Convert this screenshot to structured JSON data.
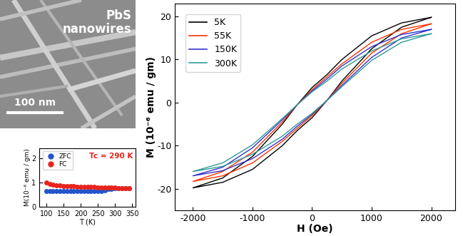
{
  "micrograph": {
    "label": "PbS\nnanowires",
    "scale_bar": "100 nm"
  },
  "chart_data": [
    {
      "type": "scatter",
      "xlabel": "T (K)",
      "ylabel": "M(10⁻⁶ emu / gm)",
      "annotation": "Tc = 290 K",
      "xlim": [
        80,
        360
      ],
      "ylim": [
        0,
        2.4
      ],
      "xticks": [
        100,
        150,
        200,
        250,
        300,
        350
      ],
      "yticks": [
        0,
        1,
        2
      ],
      "legend": "upper left",
      "marker": "o",
      "x": [
        100,
        110,
        120,
        130,
        140,
        150,
        160,
        170,
        180,
        190,
        200,
        210,
        220,
        230,
        240,
        250,
        260,
        270,
        280,
        290,
        300,
        310,
        320,
        330,
        340
      ],
      "series": [
        {
          "name": "ZFC",
          "color": "#2255cc",
          "values": [
            0.65,
            0.65,
            0.65,
            0.65,
            0.65,
            0.65,
            0.65,
            0.65,
            0.65,
            0.65,
            0.65,
            0.65,
            0.65,
            0.65,
            0.65,
            0.65,
            0.65,
            0.68,
            0.72,
            0.74,
            0.75,
            0.75,
            0.75,
            0.75,
            0.75
          ]
        },
        {
          "name": "FC",
          "color": "#e8241c",
          "values": [
            1.0,
            0.93,
            0.9,
            0.88,
            0.87,
            0.86,
            0.85,
            0.84,
            0.84,
            0.83,
            0.83,
            0.82,
            0.82,
            0.81,
            0.81,
            0.8,
            0.8,
            0.79,
            0.79,
            0.78,
            0.78,
            0.77,
            0.77,
            0.76,
            0.76
          ]
        }
      ]
    },
    {
      "type": "line",
      "xlabel": "H (Oe)",
      "ylabel": "M (10⁻⁶ emu / gm)",
      "xlim": [
        -2300,
        2400
      ],
      "ylim": [
        -25,
        23
      ],
      "xticks": [
        -2000,
        -1000,
        0,
        1000,
        2000
      ],
      "yticks": [
        -20,
        -10,
        0,
        10,
        20
      ],
      "legend": "upper left",
      "line_style": "solid",
      "series": [
        {
          "name": "5K",
          "color": "#000000",
          "x": [
            2000,
            1500,
            1000,
            500,
            250,
            0,
            -250,
            -500,
            -1000,
            -1500,
            -2000,
            -1500,
            -1000,
            -500,
            -250,
            0,
            250,
            500,
            1000,
            1500,
            2000
          ],
          "values": [
            19.8,
            18.5,
            15.5,
            10,
            6.5,
            3.5,
            -0.5,
            -5,
            -12.5,
            -17.5,
            -19.8,
            -18.5,
            -15.5,
            -10,
            -6.5,
            -3.5,
            0.5,
            5,
            12.5,
            17.5,
            19.8
          ]
        },
        {
          "name": "55K",
          "color": "#ff3300",
          "x": [
            2000,
            1500,
            1000,
            500,
            250,
            0,
            -250,
            -500,
            -1000,
            -1500,
            -2000,
            -1500,
            -1000,
            -500,
            -250,
            0,
            250,
            500,
            1000,
            1500,
            2000
          ],
          "values": [
            18.3,
            17,
            14,
            9,
            6,
            3,
            -0.5,
            -4.5,
            -11.5,
            -16,
            -18.3,
            -17,
            -14,
            -9,
            -6,
            -3,
            0.5,
            4.5,
            11.5,
            16,
            18.3
          ]
        },
        {
          "name": "150K",
          "color": "#3333cc",
          "x": [
            2000,
            1500,
            1000,
            500,
            250,
            0,
            -250,
            -500,
            -1000,
            -1500,
            -2000,
            -1500,
            -1000,
            -500,
            -250,
            0,
            250,
            500,
            1000,
            1500,
            2000
          ],
          "values": [
            17,
            15.8,
            13,
            8.5,
            5.5,
            2.7,
            -0.5,
            -4,
            -10.5,
            -15,
            -17,
            -15.8,
            -13,
            -8.5,
            -5.5,
            -2.7,
            0.5,
            4,
            10.5,
            15,
            17
          ]
        },
        {
          "name": "300K",
          "color": "#339999",
          "x": [
            2000,
            1500,
            1000,
            500,
            250,
            0,
            -250,
            -500,
            -1000,
            -1500,
            -2000,
            -1500,
            -1000,
            -500,
            -250,
            0,
            250,
            500,
            1000,
            1500,
            2000
          ],
          "values": [
            16,
            14.8,
            12,
            7.8,
            5,
            2.5,
            -0.5,
            -3.7,
            -9.8,
            -14,
            -16,
            -14.8,
            -12,
            -7.8,
            -5,
            -2.5,
            0.5,
            3.7,
            9.8,
            14,
            16
          ]
        }
      ]
    }
  ]
}
